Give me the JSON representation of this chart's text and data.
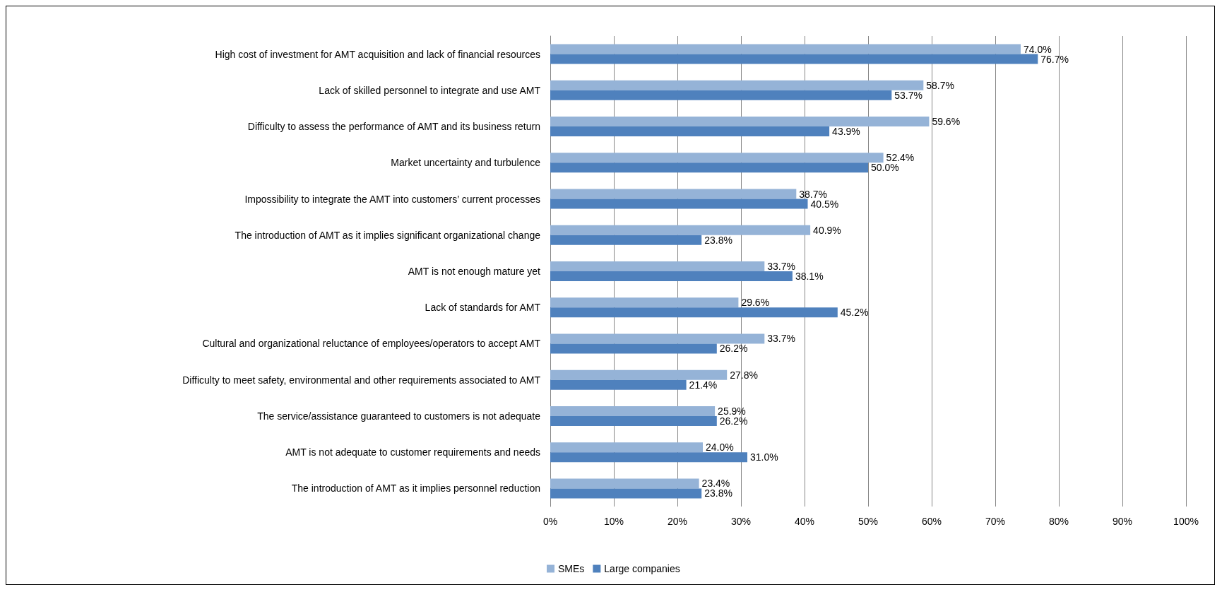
{
  "chart_data": {
    "type": "bar",
    "orientation": "horizontal",
    "categories": [
      "High cost of investment for AMT acquisition and lack of financial resources",
      "Lack of skilled personnel to integrate and use AMT",
      "Difficulty to assess the performance of AMT and its business return",
      "Market uncertainty and turbulence",
      "Impossibility to integrate the AMT into customers’ current processes",
      "The introduction of AMT as it implies significant organizational change",
      "AMT is not enough mature yet",
      "Lack of standards for AMT",
      "Cultural and organizational reluctance of employees/operators to accept AMT",
      "Difficulty to meet safety, environmental and other requirements associated to AMT",
      "The service/assistance guaranteed to customers is not adequate",
      "AMT is not adequate to customer requirements and needs",
      "The introduction of AMT as it implies personnel reduction"
    ],
    "series": [
      {
        "name": "SMEs",
        "color": "#95b3d7",
        "values": [
          74.0,
          58.7,
          59.6,
          52.4,
          38.7,
          40.9,
          33.7,
          29.6,
          33.7,
          27.8,
          25.9,
          24.0,
          23.4
        ],
        "value_labels": [
          "74.0%",
          "58.7%",
          "59.6%",
          "52.4%",
          "38.7%",
          "40.9%",
          "33.7%",
          "29.6%",
          "33.7%",
          "27.8%",
          "25.9%",
          "24.0%",
          "23.4%"
        ]
      },
      {
        "name": "Large companies",
        "color": "#4f81bd",
        "values": [
          76.7,
          53.7,
          43.9,
          50.0,
          40.5,
          23.8,
          38.1,
          45.2,
          26.2,
          21.4,
          26.2,
          31.0,
          23.8
        ],
        "value_labels": [
          "76.7%",
          "53.7%",
          "43.9%",
          "50.0%",
          "40.5%",
          "23.8%",
          "38.1%",
          "45.2%",
          "26.2%",
          "21.4%",
          "26.2%",
          "31.0%",
          "23.8%"
        ]
      }
    ],
    "xlim": [
      0,
      100
    ],
    "xticks": [
      {
        "value": 0,
        "label": "0%"
      },
      {
        "value": 10,
        "label": "10%"
      },
      {
        "value": 20,
        "label": "20%"
      },
      {
        "value": 30,
        "label": "30%"
      },
      {
        "value": 40,
        "label": "40%"
      },
      {
        "value": 50,
        "label": "50%"
      },
      {
        "value": 60,
        "label": "60%"
      },
      {
        "value": 70,
        "label": "70%"
      },
      {
        "value": 80,
        "label": "80%"
      },
      {
        "value": 90,
        "label": "90%"
      },
      {
        "value": 100,
        "label": "100%"
      }
    ],
    "grid": "x",
    "legend": "bottom"
  }
}
